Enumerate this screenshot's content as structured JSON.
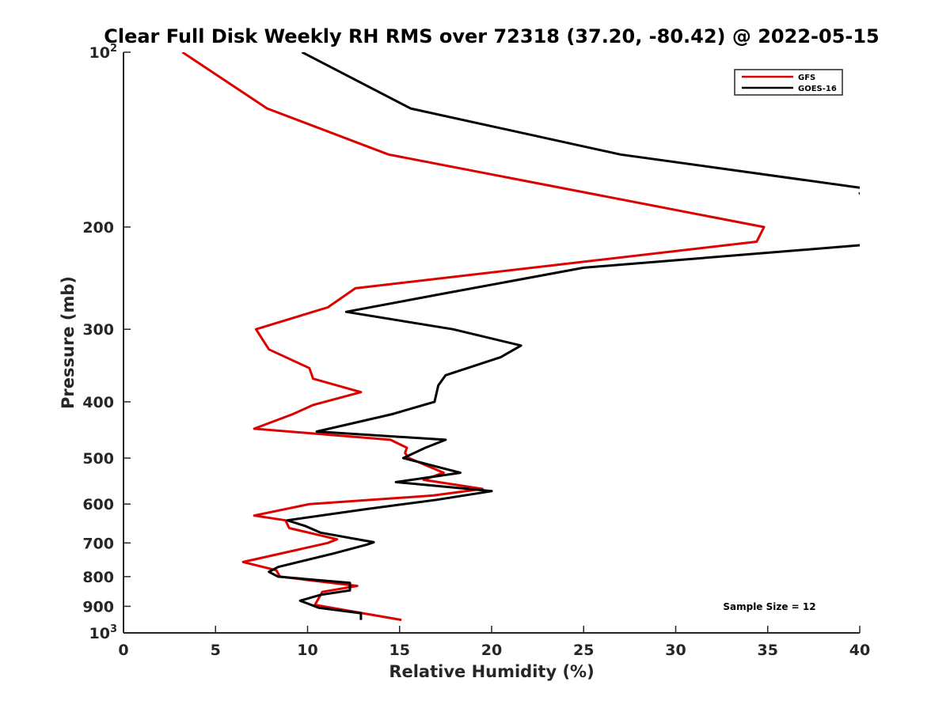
{
  "chart_data": {
    "type": "line",
    "title": "Clear Full Disk Weekly RH RMS over 72318 (37.20, -80.42) @ 2022-05-15",
    "xlabel": "Relative Humidity (%)",
    "ylabel": "Pressure (mb)",
    "xlim": [
      0,
      40
    ],
    "ylim": [
      100,
      1000
    ],
    "y_scale": "log",
    "y_reversed": true,
    "x_ticks": [
      "0",
      "5",
      "10",
      "15",
      "20",
      "25",
      "30",
      "35",
      "40"
    ],
    "y_ticks": [
      {
        "value": 100,
        "label": "10",
        "exp": "2"
      },
      {
        "value": 200,
        "label": "200",
        "exp": ""
      },
      {
        "value": 300,
        "label": "300",
        "exp": ""
      },
      {
        "value": 400,
        "label": "400",
        "exp": ""
      },
      {
        "value": 500,
        "label": "500",
        "exp": ""
      },
      {
        "value": 600,
        "label": "600",
        "exp": ""
      },
      {
        "value": 700,
        "label": "700",
        "exp": ""
      },
      {
        "value": 800,
        "label": "800",
        "exp": ""
      },
      {
        "value": 900,
        "label": "900",
        "exp": ""
      },
      {
        "value": 1000,
        "label": "10",
        "exp": "3"
      }
    ],
    "grid": false,
    "legend_position": "top-right",
    "annotation": "Sample Size = 12",
    "series": [
      {
        "name": "GFS",
        "color": "#dd0000",
        "points": [
          [
            3.2,
            100
          ],
          [
            7.8,
            125
          ],
          [
            14.4,
            150
          ],
          [
            34.8,
            200
          ],
          [
            34.4,
            212
          ],
          [
            12.6,
            255
          ],
          [
            11.1,
            275
          ],
          [
            7.2,
            300
          ],
          [
            7.9,
            325
          ],
          [
            10.1,
            350
          ],
          [
            10.3,
            365
          ],
          [
            12.9,
            385
          ],
          [
            10.3,
            405
          ],
          [
            9.2,
            420
          ],
          [
            7.1,
            445
          ],
          [
            14.5,
            465
          ],
          [
            15.4,
            480
          ],
          [
            15.3,
            490
          ],
          [
            15.5,
            500
          ],
          [
            17.4,
            530
          ],
          [
            16.3,
            545
          ],
          [
            19.5,
            565
          ],
          [
            16.8,
            580
          ],
          [
            10.1,
            600
          ],
          [
            7.1,
            628
          ],
          [
            8.8,
            640
          ],
          [
            9.0,
            660
          ],
          [
            11.6,
            690
          ],
          [
            11.1,
            700
          ],
          [
            6.5,
            755
          ],
          [
            8.3,
            780
          ],
          [
            8.5,
            800
          ],
          [
            12.7,
            830
          ],
          [
            10.8,
            850
          ],
          [
            10.4,
            895
          ],
          [
            15.1,
            950
          ]
        ]
      },
      {
        "name": "GOES-16",
        "color": "#000000",
        "points": [
          [
            9.7,
            100
          ],
          [
            15.6,
            125
          ],
          [
            27.0,
            150
          ],
          [
            45.0,
            180
          ],
          [
            40.0,
            175
          ],
          [
            44.0,
            220
          ],
          [
            40.0,
            215
          ],
          [
            25.0,
            235
          ],
          [
            17.5,
            260
          ],
          [
            12.1,
            280
          ],
          [
            17.9,
            300
          ],
          [
            21.6,
            320
          ],
          [
            20.5,
            335
          ],
          [
            17.5,
            360
          ],
          [
            17.1,
            375
          ],
          [
            16.9,
            400
          ],
          [
            14.6,
            420
          ],
          [
            10.5,
            450
          ],
          [
            17.5,
            465
          ],
          [
            16.4,
            480
          ],
          [
            15.2,
            500
          ],
          [
            18.3,
            530
          ],
          [
            14.8,
            550
          ],
          [
            20.0,
            570
          ],
          [
            17.0,
            590
          ],
          [
            13.2,
            612
          ],
          [
            8.9,
            640
          ],
          [
            9.9,
            655
          ],
          [
            10.7,
            672
          ],
          [
            13.6,
            698
          ],
          [
            13.2,
            705
          ],
          [
            11.4,
            730
          ],
          [
            8.4,
            770
          ],
          [
            7.9,
            785
          ],
          [
            8.4,
            800
          ],
          [
            12.3,
            820
          ],
          [
            12.3,
            845
          ],
          [
            10.7,
            860
          ],
          [
            9.6,
            880
          ],
          [
            10.6,
            905
          ],
          [
            12.9,
            925
          ],
          [
            12.9,
            950
          ]
        ]
      }
    ]
  }
}
